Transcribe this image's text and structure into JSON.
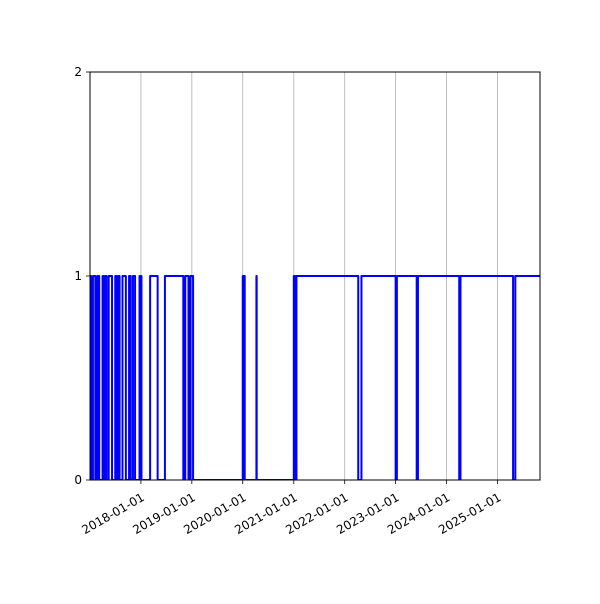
{
  "chart_data": {
    "type": "line",
    "title": "",
    "xlabel": "",
    "ylabel": "",
    "x_axis_type": "date",
    "xlim": [
      "2017-01-01",
      "2025-11-01"
    ],
    "ylim": [
      0,
      2
    ],
    "y_ticks": [
      0,
      1,
      2
    ],
    "y_tick_labels": [
      "0",
      "1",
      "2"
    ],
    "x_ticks": [
      "2018-01-01",
      "2019-01-01",
      "2020-01-01",
      "2021-01-01",
      "2022-01-01",
      "2023-01-01",
      "2024-01-01",
      "2025-01-01"
    ],
    "x_tick_labels": [
      "2018-01-01",
      "2019-01-01",
      "2020-01-01",
      "2021-01-01",
      "2022-01-01",
      "2023-01-01",
      "2024-01-01",
      "2025-01-01"
    ],
    "x_tick_rotation_deg": 30,
    "grid": "vertical",
    "legend": "none",
    "colors": {
      "series": "#0000ff",
      "grid": "#b0b0b0",
      "axes": "#000000"
    },
    "series": [
      {
        "x": [
          "2017-01-01",
          "2017-01-01",
          "2017-01-08",
          "2017-01-08",
          "2017-01-22",
          "2017-01-22",
          "2017-02-08",
          "2017-02-08",
          "2017-02-22",
          "2017-02-22",
          "2017-03-08",
          "2017-03-08",
          "2017-04-01",
          "2017-04-01",
          "2017-04-11",
          "2017-04-11",
          "2017-04-20",
          "2017-04-20",
          "2017-04-30",
          "2017-04-30",
          "2017-05-15",
          "2017-05-15",
          "2017-06-08",
          "2017-06-08",
          "2017-06-25",
          "2017-07-01",
          "2017-07-01",
          "2017-07-10",
          "2017-07-10",
          "2017-07-20",
          "2017-07-20",
          "2017-08-01",
          "2017-08-01",
          "2017-08-22",
          "2017-08-22",
          "2017-09-15",
          "2017-09-15",
          "2017-10-08",
          "2017-10-08",
          "2017-10-20",
          "2017-10-20",
          "2017-11-05",
          "2017-11-05",
          "2017-11-20",
          "2017-11-20",
          "2017-12-22",
          "2017-12-22",
          "2018-01-05",
          "2018-01-05",
          "2018-03-08",
          "2018-03-08",
          "2018-05-01",
          "2018-05-01",
          "2018-06-22",
          "2018-06-22",
          "2018-11-01",
          "2018-11-01",
          "2018-11-15",
          "2018-11-15",
          "2018-12-08",
          "2018-12-08",
          "2018-12-22",
          "2018-12-22",
          "2019-01-10",
          "2019-01-10",
          "2020-01-01",
          "2020-01-01",
          "2020-01-15",
          "2020-01-15",
          "2020-04-08",
          "2020-04-08",
          "2020-04-10",
          "2020-04-10",
          "2021-01-01",
          "2021-01-01",
          "2021-01-10",
          "2021-01-10",
          "2021-01-20",
          "2021-01-20",
          "2022-04-08",
          "2022-04-08",
          "2022-05-01",
          "2022-05-01",
          "2022-07-20",
          "2023-01-01",
          "2023-01-01",
          "2023-01-10",
          "2023-01-10",
          "2023-06-01",
          "2023-06-01",
          "2023-06-10",
          "2023-06-10",
          "2024-04-01",
          "2024-04-01",
          "2024-04-10",
          "2024-04-10",
          "2025-04-22",
          "2025-04-22",
          "2025-05-08",
          "2025-05-08",
          "2025-11-01"
        ],
        "values": [
          0,
          1,
          1,
          0,
          0,
          1,
          1,
          0,
          0,
          1,
          1,
          0,
          0,
          1,
          1,
          0,
          0,
          1,
          1,
          0,
          0,
          1,
          1,
          0,
          0,
          0,
          1,
          1,
          0,
          0,
          1,
          1,
          0,
          0,
          1,
          1,
          0,
          0,
          1,
          1,
          0,
          0,
          1,
          1,
          0,
          0,
          1,
          1,
          0,
          0,
          1,
          1,
          0,
          0,
          1,
          1,
          0,
          0,
          1,
          1,
          0,
          0,
          1,
          1,
          0,
          0,
          1,
          1,
          0,
          0,
          1,
          1,
          0,
          0,
          1,
          1,
          0,
          0,
          1,
          1,
          0,
          0,
          1,
          1,
          1,
          0,
          0,
          1,
          1,
          0,
          0,
          1,
          1,
          0,
          0,
          1,
          1,
          0,
          0,
          1,
          1
        ]
      }
    ]
  }
}
